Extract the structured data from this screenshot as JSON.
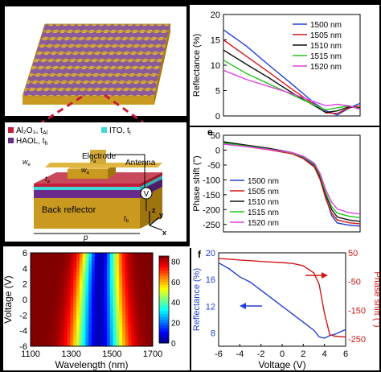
{
  "colors": {
    "blue": "#1f3fd6",
    "red": "#d01818",
    "black": "#111111",
    "green": "#22c51c",
    "magenta": "#e040e0",
    "gold": "#c99a1f",
    "purple": "#6a2c8a",
    "teal": "#40d8d8",
    "crimson": "#c41e3a"
  },
  "device": {
    "legend_al2o3": "Al₂O₃, t",
    "legend_al2o3_sub": "Al",
    "legend_ito": "ITO, t",
    "legend_ito_sub": "I",
    "legend_haol": "HAOL, t",
    "legend_haol_sub": "h",
    "electrode": "Electrode",
    "antenna": "Antenna",
    "back_reflector": "Back reflector",
    "w_e": "w",
    "w_e_sub": "e",
    "w_a": "w",
    "w_a_sub": "a",
    "l_a": "l",
    "l_a_sub": "a",
    "t_a": "t",
    "t_a_sub": "a",
    "t_b": "t",
    "t_b_sub": "b",
    "p": "p",
    "axis_x": "x",
    "axis_y": "y",
    "axis_z": "z",
    "voltmeter": "V"
  },
  "chart_data": [
    {
      "type": "line",
      "panel": "reflectance",
      "ylabel": "Reflectance (%)",
      "ylim": [
        0,
        20
      ],
      "xlim": [
        -6,
        6
      ],
      "yticks": [
        "0",
        "5",
        "10",
        "15",
        "20"
      ],
      "x": [
        -6,
        -4,
        -2,
        0,
        2,
        3,
        4,
        5,
        6
      ],
      "series": [
        {
          "name": "1500 nm",
          "values": [
            17.0,
            13.8,
            10.0,
            6.3,
            2.5,
            1.0,
            0.2,
            1.5,
            2.5
          ]
        },
        {
          "name": "1505 nm",
          "values": [
            15.0,
            11.8,
            8.6,
            5.3,
            2.2,
            0.6,
            0.5,
            1.6,
            2.0
          ]
        },
        {
          "name": "1510 nm",
          "values": [
            13.0,
            10.2,
            7.5,
            4.6,
            2.0,
            0.7,
            1.0,
            1.8,
            1.6
          ]
        },
        {
          "name": "1515 nm",
          "values": [
            11.0,
            8.4,
            6.3,
            4.2,
            2.1,
            1.2,
            1.6,
            2.0,
            1.4
          ]
        },
        {
          "name": "1520 nm",
          "values": [
            9.0,
            7.2,
            5.8,
            4.4,
            2.8,
            2.0,
            2.3,
            2.0,
            1.3
          ]
        }
      ]
    },
    {
      "type": "line",
      "panel": "phase",
      "panel_letter": "e",
      "ylabel": "Phase shift (°)",
      "ylim": [
        -275,
        50
      ],
      "xlim": [
        -6,
        6
      ],
      "yticks": [
        "50",
        "0",
        "-50",
        "-100",
        "-150",
        "-200",
        "-250"
      ],
      "x": [
        -6,
        -4,
        -2,
        0,
        1,
        2,
        2.5,
        3,
        3.5,
        4,
        5,
        6
      ],
      "series": [
        {
          "name": "1500 nm",
          "values": [
            25,
            14,
            3,
            -10,
            -25,
            -55,
            -95,
            -160,
            -220,
            -245,
            -252,
            -256
          ]
        },
        {
          "name": "1505 nm",
          "values": [
            22,
            12,
            1,
            -12,
            -28,
            -58,
            -100,
            -165,
            -212,
            -235,
            -244,
            -248
          ]
        },
        {
          "name": "1510 nm",
          "values": [
            28,
            17,
            6,
            -8,
            -22,
            -50,
            -90,
            -150,
            -200,
            -225,
            -235,
            -240
          ]
        },
        {
          "name": "1515 nm",
          "values": [
            24,
            14,
            3,
            -9,
            -22,
            -48,
            -85,
            -145,
            -190,
            -212,
            -222,
            -227
          ]
        },
        {
          "name": "1520 nm",
          "values": [
            20,
            12,
            2,
            -8,
            -20,
            -44,
            -80,
            -135,
            -175,
            -198,
            -210,
            -215
          ]
        }
      ]
    },
    {
      "type": "heatmap",
      "panel": "map",
      "xlabel": "Wavelength (nm)",
      "ylabel": "Voltage (V)",
      "xlim": [
        1100,
        1700
      ],
      "ylim": [
        -6,
        6
      ],
      "xticks": [
        "1100",
        "1300",
        "1500",
        "1700"
      ],
      "yticks": [
        "6",
        "4",
        "2",
        "0",
        "-2",
        "-4",
        "-6"
      ],
      "colorbar_ticks": [
        "80",
        "60",
        "40",
        "20",
        "0"
      ],
      "colorbar_range": [
        0,
        85
      ]
    },
    {
      "type": "line",
      "panel": "dual",
      "panel_letter": "f",
      "xlabel": "Voltage (V)",
      "ylabel_left": "Reflectance (%)",
      "ylabel_right": "Phase shift (°)",
      "xlim": [
        -6,
        6
      ],
      "ylim_left": [
        6,
        20
      ],
      "ylim_right": [
        -275,
        50
      ],
      "xticks": [
        "-6",
        "-4",
        "-2",
        "0",
        "2",
        "4",
        "6"
      ],
      "yticks_left": [
        "20",
        "16",
        "12",
        "8"
      ],
      "yticks_right": [
        "50",
        "-50",
        "-150",
        "-250"
      ],
      "x": [
        -6,
        -5,
        -4,
        -3,
        -2,
        -1,
        0,
        1,
        2,
        3,
        3.5,
        4,
        4.5,
        5,
        6
      ],
      "series": [
        {
          "axis": "left",
          "values": [
            18.5,
            17.6,
            16.4,
            15.6,
            14.4,
            13.2,
            12.0,
            10.8,
            9.6,
            8.4,
            7.4,
            7.2,
            7.6,
            7.8,
            8.5
          ]
        },
        {
          "axis": "right",
          "values": [
            30,
            28,
            25,
            23,
            20,
            18,
            16,
            13,
            5,
            -20,
            -60,
            -160,
            -235,
            -240,
            -243
          ]
        }
      ]
    }
  ]
}
